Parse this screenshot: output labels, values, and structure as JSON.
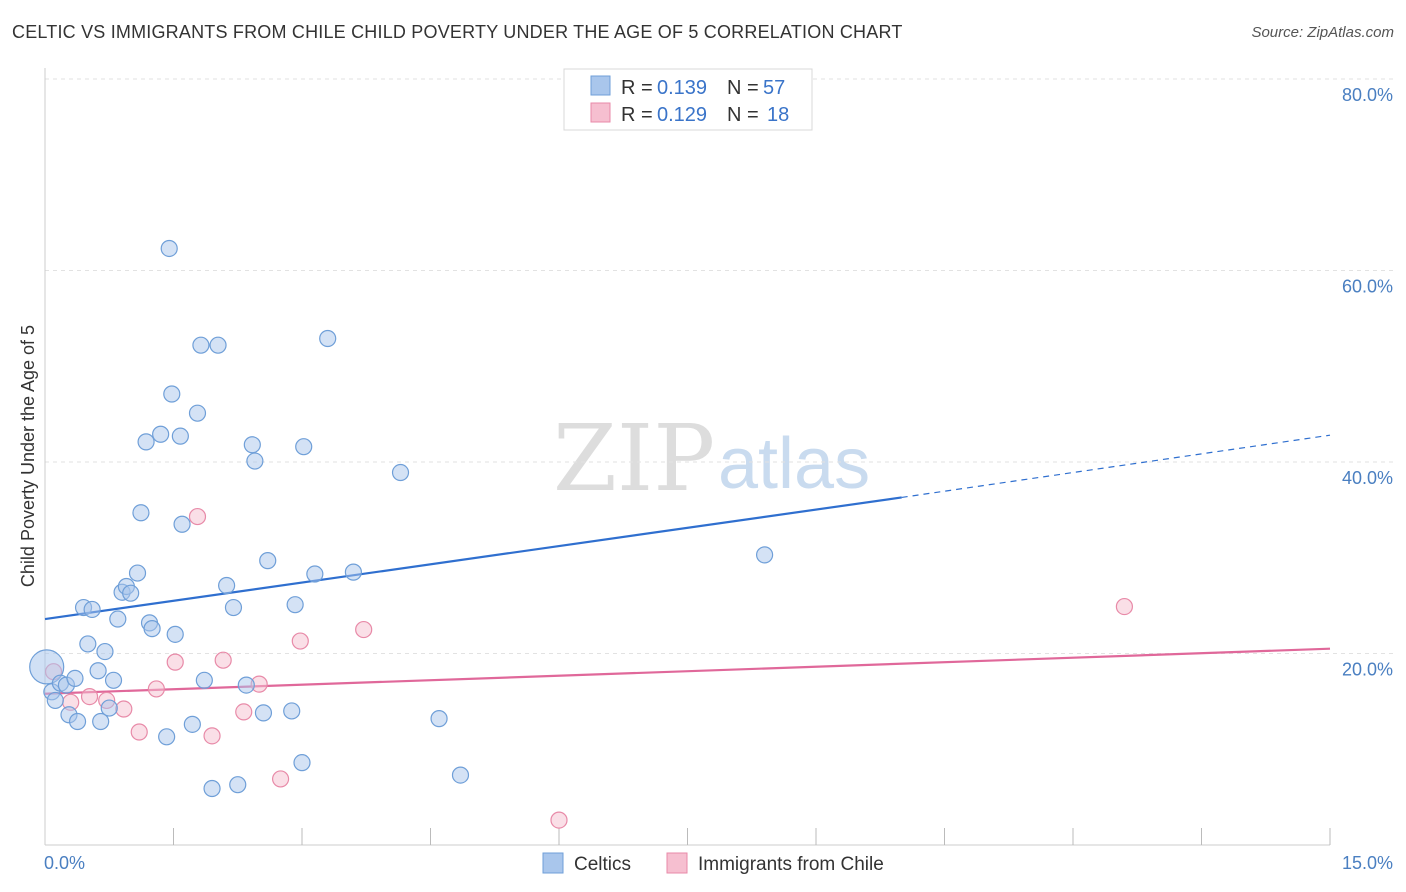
{
  "title": "CELTIC VS IMMIGRANTS FROM CHILE CHILD POVERTY UNDER THE AGE OF 5 CORRELATION CHART",
  "source": "Source: ZipAtlas.com",
  "watermark": {
    "part1": "ZIP",
    "part2": "atlas"
  },
  "colors": {
    "celtics_fill": "#a9c6ec",
    "celtics_stroke": "#6f9fd8",
    "celtics_line": "#2f6fcf",
    "chile_fill": "#f6bfd0",
    "chile_stroke": "#e88aa8",
    "chile_line": "#e0689a",
    "tick_label": "#4a7fc1",
    "grid": "#e2e2e2"
  },
  "legend": {
    "rows": [
      {
        "r_label": "R = ",
        "r_value": "0.139",
        "n_label": "N = ",
        "n_value": "57"
      },
      {
        "r_label": "R = ",
        "r_value": "0.129",
        "n_label": "N = ",
        "n_value": "18"
      }
    ]
  },
  "chart_data": {
    "type": "scatter",
    "title": "CELTIC VS IMMIGRANTS FROM CHILE CHILD POVERTY UNDER THE AGE OF 5 CORRELATION CHART",
    "xlabel": "",
    "ylabel": "Child Poverty Under the Age of 5",
    "xlim": [
      0,
      15
    ],
    "ylim": [
      0,
      80
    ],
    "x_tick_labels": [
      "0.0%",
      "15.0%"
    ],
    "y_ticks": [
      20,
      40,
      60,
      80
    ],
    "y_tick_labels": [
      "20.0%",
      "40.0%",
      "60.0%",
      "80.0%"
    ],
    "grid": true,
    "legend_position": "top-center",
    "series": [
      {
        "name": "Celtics",
        "points": [
          {
            "x": 0.02,
            "y": 18.6
          },
          {
            "x": 0.08,
            "y": 16.0
          },
          {
            "x": 0.12,
            "y": 15.1
          },
          {
            "x": 0.18,
            "y": 16.9
          },
          {
            "x": 0.25,
            "y": 16.7
          },
          {
            "x": 0.28,
            "y": 13.6
          },
          {
            "x": 0.35,
            "y": 17.4
          },
          {
            "x": 0.38,
            "y": 12.9
          },
          {
            "x": 0.45,
            "y": 24.8
          },
          {
            "x": 0.5,
            "y": 21.0
          },
          {
            "x": 0.55,
            "y": 24.6
          },
          {
            "x": 0.62,
            "y": 18.2
          },
          {
            "x": 0.65,
            "y": 12.9
          },
          {
            "x": 0.7,
            "y": 20.2
          },
          {
            "x": 0.75,
            "y": 14.3
          },
          {
            "x": 0.8,
            "y": 17.2
          },
          {
            "x": 0.85,
            "y": 23.6
          },
          {
            "x": 0.9,
            "y": 26.4
          },
          {
            "x": 0.95,
            "y": 27.0
          },
          {
            "x": 1.0,
            "y": 26.3
          },
          {
            "x": 1.08,
            "y": 28.4
          },
          {
            "x": 1.12,
            "y": 34.7
          },
          {
            "x": 1.18,
            "y": 42.1
          },
          {
            "x": 1.22,
            "y": 23.2
          },
          {
            "x": 1.25,
            "y": 22.6
          },
          {
            "x": 1.35,
            "y": 42.9
          },
          {
            "x": 1.42,
            "y": 11.3
          },
          {
            "x": 1.45,
            "y": 62.3
          },
          {
            "x": 1.48,
            "y": 47.1
          },
          {
            "x": 1.52,
            "y": 22.0
          },
          {
            "x": 1.58,
            "y": 42.7
          },
          {
            "x": 1.6,
            "y": 33.5
          },
          {
            "x": 1.72,
            "y": 12.6
          },
          {
            "x": 1.78,
            "y": 45.1
          },
          {
            "x": 1.82,
            "y": 52.2
          },
          {
            "x": 1.86,
            "y": 17.2
          },
          {
            "x": 1.95,
            "y": 5.9
          },
          {
            "x": 2.02,
            "y": 52.2
          },
          {
            "x": 2.12,
            "y": 27.1
          },
          {
            "x": 2.2,
            "y": 24.8
          },
          {
            "x": 2.25,
            "y": 6.3
          },
          {
            "x": 2.35,
            "y": 16.7
          },
          {
            "x": 2.42,
            "y": 41.8
          },
          {
            "x": 2.45,
            "y": 40.1
          },
          {
            "x": 2.55,
            "y": 13.8
          },
          {
            "x": 2.6,
            "y": 29.7
          },
          {
            "x": 2.88,
            "y": 14.0
          },
          {
            "x": 2.92,
            "y": 25.1
          },
          {
            "x": 3.0,
            "y": 8.6
          },
          {
            "x": 3.02,
            "y": 41.6
          },
          {
            "x": 3.15,
            "y": 28.3
          },
          {
            "x": 3.3,
            "y": 52.9
          },
          {
            "x": 3.6,
            "y": 28.5
          },
          {
            "x": 4.15,
            "y": 38.9
          },
          {
            "x": 4.6,
            "y": 13.2
          },
          {
            "x": 4.85,
            "y": 7.3
          },
          {
            "x": 8.4,
            "y": 30.3
          }
        ]
      },
      {
        "name": "Immigrants from Chile",
        "points": [
          {
            "x": 0.1,
            "y": 18.1
          },
          {
            "x": 0.3,
            "y": 14.9
          },
          {
            "x": 0.52,
            "y": 15.5
          },
          {
            "x": 0.72,
            "y": 15.1
          },
          {
            "x": 0.92,
            "y": 14.2
          },
          {
            "x": 1.1,
            "y": 11.8
          },
          {
            "x": 1.3,
            "y": 16.3
          },
          {
            "x": 1.52,
            "y": 19.1
          },
          {
            "x": 1.78,
            "y": 34.3
          },
          {
            "x": 1.95,
            "y": 11.4
          },
          {
            "x": 2.08,
            "y": 19.3
          },
          {
            "x": 2.32,
            "y": 13.9
          },
          {
            "x": 2.5,
            "y": 16.8
          },
          {
            "x": 2.75,
            "y": 6.9
          },
          {
            "x": 2.98,
            "y": 21.3
          },
          {
            "x": 3.72,
            "y": 22.5
          },
          {
            "x": 6.0,
            "y": 2.6
          },
          {
            "x": 12.6,
            "y": 24.9
          }
        ]
      }
    ],
    "trend_lines": [
      {
        "series": "Celtics",
        "x_start": 0,
        "y_start": 23.6,
        "x_solid_end": 10.0,
        "y_solid_end": 36.3,
        "x_end": 15,
        "y_end": 42.8
      },
      {
        "series": "Immigrants from Chile",
        "x_start": 0,
        "y_start": 15.8,
        "x_end": 15,
        "y_end": 20.5
      }
    ]
  }
}
